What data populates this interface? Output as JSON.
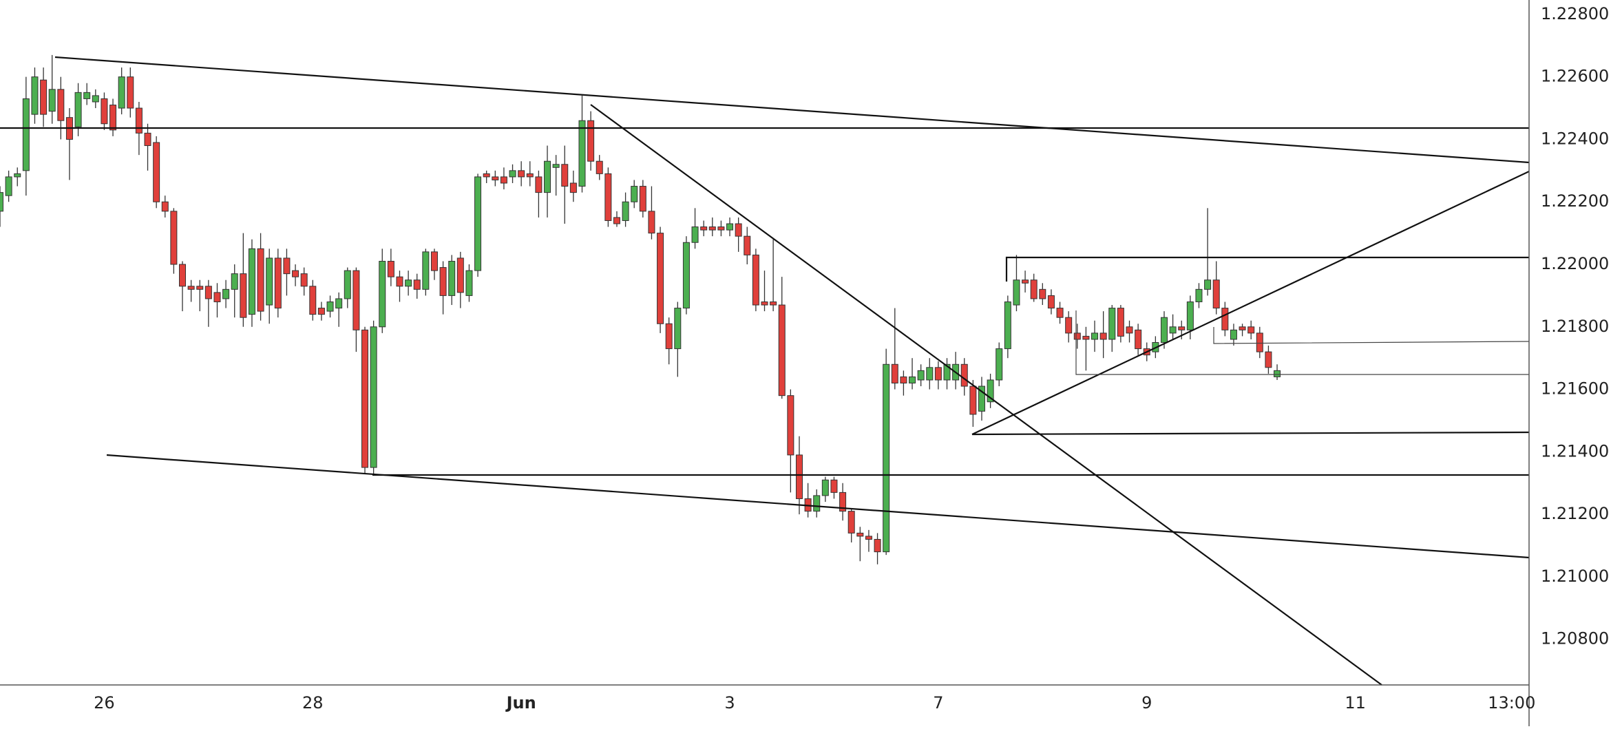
{
  "chart_data": {
    "type": "candlestick",
    "up_color": "#4caf50",
    "down_color": "#e0403b",
    "xlim": [
      0,
      176
    ],
    "xticks": [
      {
        "value": 12,
        "label": "26"
      },
      {
        "value": 36,
        "label": "28"
      },
      {
        "value": 60,
        "label": "Jun"
      },
      {
        "value": 84,
        "label": "3"
      },
      {
        "value": 108,
        "label": "7"
      },
      {
        "value": 132,
        "label": "9"
      },
      {
        "value": 156,
        "label": "11"
      },
      {
        "value": 174,
        "label": "13:00"
      }
    ],
    "ylim": [
      1.20654,
      1.22846
    ],
    "yticks": [
      {
        "value": 1.228,
        "label": "1.22800"
      },
      {
        "value": 1.226,
        "label": "1.22600"
      },
      {
        "value": 1.224,
        "label": "1.22400"
      },
      {
        "value": 1.222,
        "label": "1.22200"
      },
      {
        "value": 1.22,
        "label": "1.22000"
      },
      {
        "value": 1.218,
        "label": "1.21800"
      },
      {
        "value": 1.216,
        "label": "1.21600"
      },
      {
        "value": 1.214,
        "label": "1.21400"
      },
      {
        "value": 1.212,
        "label": "1.21200"
      },
      {
        "value": 1.21,
        "label": "1.21000"
      },
      {
        "value": 1.208,
        "label": "1.20800"
      }
    ],
    "ohlc": [
      [
        1.2217,
        1.2225,
        1.2212,
        1.2223
      ],
      [
        1.2222,
        1.223,
        1.222,
        1.2228
      ],
      [
        1.2228,
        1.2231,
        1.2225,
        1.2229
      ],
      [
        1.223,
        1.226,
        1.2222,
        1.2253
      ],
      [
        1.2248,
        1.2263,
        1.2245,
        1.226
      ],
      [
        1.2259,
        1.2263,
        1.2244,
        1.2248
      ],
      [
        1.2249,
        1.2267,
        1.2245,
        1.2256
      ],
      [
        1.2256,
        1.226,
        1.224,
        1.2246
      ],
      [
        1.2247,
        1.225,
        1.2227,
        1.224
      ],
      [
        1.2244,
        1.2258,
        1.2241,
        1.2255
      ],
      [
        1.2253,
        1.2258,
        1.2251,
        1.2255
      ],
      [
        1.2252,
        1.2256,
        1.225,
        1.2254
      ],
      [
        1.2253,
        1.2255,
        1.2243,
        1.2245
      ],
      [
        1.2251,
        1.2253,
        1.2241,
        1.2243
      ],
      [
        1.225,
        1.2263,
        1.2248,
        1.226
      ],
      [
        1.226,
        1.2263,
        1.2247,
        1.225
      ],
      [
        1.225,
        1.2252,
        1.2235,
        1.2242
      ],
      [
        1.2242,
        1.2245,
        1.223,
        1.2238
      ],
      [
        1.2239,
        1.2241,
        1.2218,
        1.222
      ],
      [
        1.222,
        1.2222,
        1.2215,
        1.2217
      ],
      [
        1.2217,
        1.2218,
        1.2197,
        1.22
      ],
      [
        1.22,
        1.2201,
        1.2185,
        1.2193
      ],
      [
        1.2193,
        1.2195,
        1.2188,
        1.2192
      ],
      [
        1.2193,
        1.2195,
        1.2185,
        1.2192
      ],
      [
        1.2193,
        1.2195,
        1.218,
        1.2189
      ],
      [
        1.2191,
        1.2194,
        1.2183,
        1.2188
      ],
      [
        1.2189,
        1.2195,
        1.2186,
        1.2192
      ],
      [
        1.2192,
        1.22,
        1.2183,
        1.2197
      ],
      [
        1.2197,
        1.221,
        1.218,
        1.2183
      ],
      [
        1.2184,
        1.2208,
        1.218,
        1.2205
      ],
      [
        1.2205,
        1.221,
        1.2182,
        1.2185
      ],
      [
        1.2187,
        1.2205,
        1.2181,
        1.2202
      ],
      [
        1.2202,
        1.2205,
        1.2183,
        1.2186
      ],
      [
        1.2202,
        1.2205,
        1.219,
        1.2197
      ],
      [
        1.2198,
        1.22,
        1.2193,
        1.2196
      ],
      [
        1.2197,
        1.2199,
        1.219,
        1.2193
      ],
      [
        1.2193,
        1.2195,
        1.2182,
        1.2184
      ],
      [
        1.2186,
        1.2188,
        1.2182,
        1.2184
      ],
      [
        1.2185,
        1.219,
        1.2183,
        1.2188
      ],
      [
        1.2186,
        1.2191,
        1.218,
        1.2189
      ],
      [
        1.2189,
        1.2199,
        1.2186,
        1.2198
      ],
      [
        1.2198,
        1.2199,
        1.2172,
        1.2179
      ],
      [
        1.2179,
        1.218,
        1.2133,
        1.2135
      ],
      [
        1.2135,
        1.2182,
        1.2133,
        1.218
      ],
      [
        1.218,
        1.2205,
        1.2178,
        1.2201
      ],
      [
        1.2201,
        1.2205,
        1.2193,
        1.2196
      ],
      [
        1.2196,
        1.2198,
        1.2188,
        1.2193
      ],
      [
        1.2193,
        1.2198,
        1.219,
        1.2195
      ],
      [
        1.2195,
        1.2197,
        1.2189,
        1.2192
      ],
      [
        1.2192,
        1.2205,
        1.219,
        1.2204
      ],
      [
        1.2204,
        1.2205,
        1.2195,
        1.2198
      ],
      [
        1.2199,
        1.2201,
        1.2184,
        1.219
      ],
      [
        1.219,
        1.2203,
        1.2187,
        1.2201
      ],
      [
        1.2202,
        1.2204,
        1.2186,
        1.2191
      ],
      [
        1.219,
        1.22,
        1.2188,
        1.2198
      ],
      [
        1.2198,
        1.2229,
        1.2196,
        1.2228
      ],
      [
        1.2229,
        1.223,
        1.2226,
        1.2228
      ],
      [
        1.2228,
        1.223,
        1.2225,
        1.2227
      ],
      [
        1.2228,
        1.2231,
        1.2224,
        1.2226
      ],
      [
        1.2228,
        1.2232,
        1.2226,
        1.223
      ],
      [
        1.223,
        1.2233,
        1.2225,
        1.2228
      ],
      [
        1.2229,
        1.2233,
        1.2225,
        1.2228
      ],
      [
        1.2228,
        1.223,
        1.2215,
        1.2223
      ],
      [
        1.2223,
        1.2238,
        1.2215,
        1.2233
      ],
      [
        1.2231,
        1.2235,
        1.2222,
        1.2232
      ],
      [
        1.2232,
        1.2238,
        1.2213,
        1.2225
      ],
      [
        1.2226,
        1.223,
        1.222,
        1.2223
      ],
      [
        1.2225,
        1.2254,
        1.2223,
        1.2246
      ],
      [
        1.2246,
        1.2249,
        1.223,
        1.2233
      ],
      [
        1.2233,
        1.2235,
        1.2227,
        1.2229
      ],
      [
        1.2229,
        1.2231,
        1.2212,
        1.2214
      ],
      [
        1.2215,
        1.2217,
        1.2212,
        1.2213
      ],
      [
        1.2214,
        1.2223,
        1.2212,
        1.222
      ],
      [
        1.222,
        1.2227,
        1.2218,
        1.2225
      ],
      [
        1.2225,
        1.2227,
        1.2215,
        1.2217
      ],
      [
        1.2217,
        1.2225,
        1.2208,
        1.221
      ],
      [
        1.221,
        1.2212,
        1.2178,
        1.2181
      ],
      [
        1.2181,
        1.2183,
        1.2168,
        1.2173
      ],
      [
        1.2173,
        1.2188,
        1.2164,
        1.2186
      ],
      [
        1.2186,
        1.2209,
        1.2184,
        1.2207
      ],
      [
        1.2207,
        1.2218,
        1.2205,
        1.2212
      ],
      [
        1.2212,
        1.2214,
        1.2209,
        1.2211
      ],
      [
        1.2212,
        1.2215,
        1.2209,
        1.2211
      ],
      [
        1.2212,
        1.2214,
        1.2209,
        1.2211
      ],
      [
        1.2211,
        1.2215,
        1.2209,
        1.2213
      ],
      [
        1.2213,
        1.2215,
        1.2204,
        1.2209
      ],
      [
        1.2209,
        1.2212,
        1.22,
        1.2203
      ],
      [
        1.2203,
        1.2205,
        1.2185,
        1.2187
      ],
      [
        1.2188,
        1.2198,
        1.2185,
        1.2187
      ],
      [
        1.2188,
        1.2208,
        1.2185,
        1.2187
      ],
      [
        1.2187,
        1.2196,
        1.2157,
        1.2158
      ],
      [
        1.2158,
        1.216,
        1.2127,
        1.2139
      ],
      [
        1.2139,
        1.2145,
        1.212,
        1.2125
      ],
      [
        1.2125,
        1.213,
        1.2119,
        1.2121
      ],
      [
        1.2121,
        1.2128,
        1.2119,
        1.2126
      ],
      [
        1.2126,
        1.2132,
        1.2124,
        1.2131
      ],
      [
        1.2131,
        1.2132,
        1.2125,
        1.2127
      ],
      [
        1.2127,
        1.213,
        1.2118,
        1.2121
      ],
      [
        1.2121,
        1.2122,
        1.2111,
        1.2114
      ],
      [
        1.2114,
        1.2116,
        1.2105,
        1.2113
      ],
      [
        1.2113,
        1.2115,
        1.2108,
        1.2112
      ],
      [
        1.2112,
        1.2114,
        1.2104,
        1.2108
      ],
      [
        1.2108,
        1.2173,
        1.2107,
        1.2168
      ],
      [
        1.2168,
        1.2186,
        1.216,
        1.2162
      ],
      [
        1.2164,
        1.2166,
        1.2158,
        1.2162
      ],
      [
        1.2162,
        1.217,
        1.216,
        1.2164
      ],
      [
        1.2163,
        1.2168,
        1.2161,
        1.2166
      ],
      [
        1.2163,
        1.217,
        1.216,
        1.2167
      ],
      [
        1.2167,
        1.2169,
        1.216,
        1.2163
      ],
      [
        1.2163,
        1.217,
        1.216,
        1.2168
      ],
      [
        1.2163,
        1.2172,
        1.216,
        1.2168
      ],
      [
        1.2168,
        1.217,
        1.2158,
        1.2161
      ],
      [
        1.2161,
        1.2163,
        1.2148,
        1.2152
      ],
      [
        1.2153,
        1.2164,
        1.215,
        1.2161
      ],
      [
        1.2156,
        1.2165,
        1.2154,
        1.2163
      ],
      [
        1.2163,
        1.2175,
        1.2161,
        1.2173
      ],
      [
        1.2173,
        1.219,
        1.217,
        1.2188
      ],
      [
        1.2187,
        1.2203,
        1.2185,
        1.2195
      ],
      [
        1.2195,
        1.2198,
        1.2191,
        1.2194
      ],
      [
        1.2195,
        1.2197,
        1.2188,
        1.2189
      ],
      [
        1.2192,
        1.2194,
        1.2187,
        1.2189
      ],
      [
        1.219,
        1.2192,
        1.2184,
        1.2186
      ],
      [
        1.2186,
        1.2188,
        1.2181,
        1.2183
      ],
      [
        1.2183,
        1.2185,
        1.2175,
        1.2178
      ],
      [
        1.2178,
        1.2181,
        1.2173,
        1.2176
      ],
      [
        1.2177,
        1.218,
        1.2166,
        1.2176
      ],
      [
        1.2176,
        1.2182,
        1.2172,
        1.2178
      ],
      [
        1.2178,
        1.2185,
        1.217,
        1.2176
      ],
      [
        1.2176,
        1.2187,
        1.2172,
        1.2186
      ],
      [
        1.2186,
        1.2187,
        1.2175,
        1.2177
      ],
      [
        1.218,
        1.2182,
        1.2175,
        1.2178
      ],
      [
        1.2179,
        1.2181,
        1.2171,
        1.2173
      ],
      [
        1.2173,
        1.2175,
        1.2169,
        1.2171
      ],
      [
        1.2172,
        1.2177,
        1.217,
        1.2175
      ],
      [
        1.2175,
        1.2185,
        1.2173,
        1.2183
      ],
      [
        1.2178,
        1.2184,
        1.2176,
        1.218
      ],
      [
        1.218,
        1.2182,
        1.2176,
        1.2179
      ],
      [
        1.2179,
        1.219,
        1.2176,
        1.2188
      ],
      [
        1.2188,
        1.2194,
        1.2186,
        1.2192
      ],
      [
        1.2192,
        1.2218,
        1.219,
        1.2195
      ],
      [
        1.2195,
        1.2201,
        1.2184,
        1.2186
      ],
      [
        1.2186,
        1.2188,
        1.2177,
        1.2179
      ],
      [
        1.2176,
        1.2181,
        1.2174,
        1.2179
      ],
      [
        1.218,
        1.2181,
        1.2177,
        1.2179
      ],
      [
        1.218,
        1.2182,
        1.2176,
        1.2178
      ],
      [
        1.2178,
        1.218,
        1.217,
        1.2172
      ],
      [
        1.2172,
        1.2174,
        1.2165,
        1.2167
      ],
      [
        1.2164,
        1.2168,
        1.2163,
        1.2166
      ]
    ]
  }
}
